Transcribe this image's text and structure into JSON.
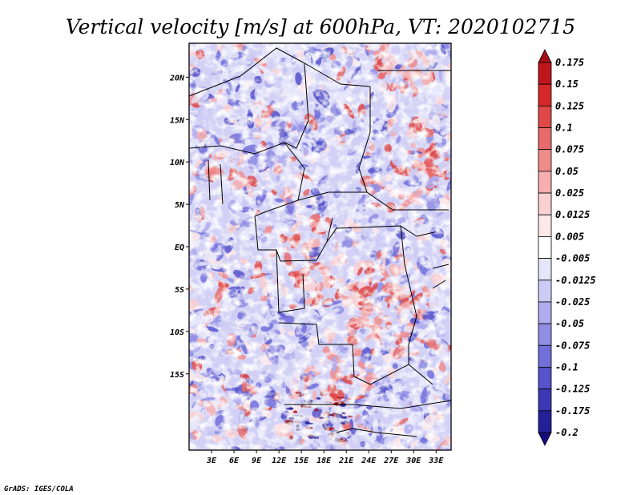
{
  "chart_data": {
    "type": "heatmap",
    "title": "Vertical velocity [m/s] at 600hPa, VT: 2020102715",
    "variable": "Vertical velocity",
    "units": "m/s",
    "level": "600hPa",
    "valid_time": "2020102715",
    "x_axis": {
      "range": [
        0,
        35
      ],
      "ticks": [
        3,
        6,
        9,
        12,
        15,
        18,
        21,
        24,
        27,
        30,
        33
      ],
      "tick_labels": [
        "3E",
        "6E",
        "9E",
        "12E",
        "15E",
        "18E",
        "21E",
        "24E",
        "27E",
        "30E",
        "33E"
      ]
    },
    "y_axis": {
      "range": [
        -24,
        24
      ],
      "ticks": [
        20,
        15,
        10,
        5,
        0,
        -5,
        -10,
        -15
      ],
      "tick_labels": [
        "20N",
        "15N",
        "10N",
        "5N",
        "EQ",
        "5S",
        "10S",
        "15S"
      ]
    },
    "colorbar": {
      "labels": [
        "0.175",
        "0.15",
        "0.125",
        "0.1",
        "0.075",
        "0.05",
        "0.025",
        "0.0125",
        "0.005",
        "-0.005",
        "-0.0125",
        "-0.025",
        "-0.05",
        "-0.075",
        "-0.1",
        "-0.125",
        "-0.175",
        "-0.2"
      ],
      "colors": [
        "#a50f15",
        "#c0151c",
        "#d62828",
        "#e04848",
        "#e86a6a",
        "#f08c8c",
        "#f6aeae",
        "#fad0d0",
        "#fde8e8",
        "#ffffff",
        "#e6e6fb",
        "#cccbf6",
        "#aeaced",
        "#8f8de4",
        "#716fda",
        "#5552cc",
        "#3b37b5",
        "#23209a",
        "#140c7e"
      ]
    }
  },
  "credit": "GrADS: IGES/COLA"
}
